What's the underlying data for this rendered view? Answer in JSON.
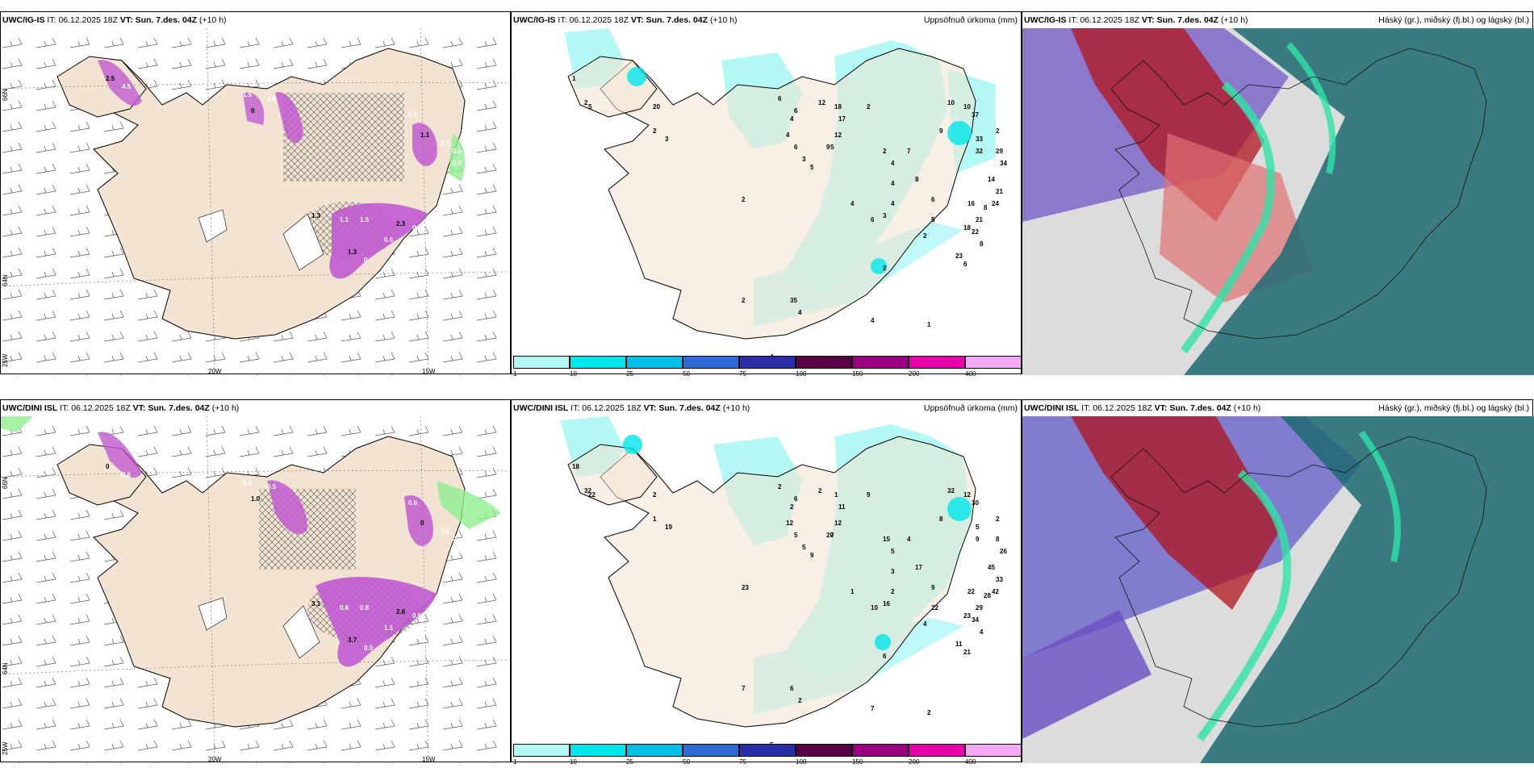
{
  "rows": [
    {
      "model": "UWC/IG-IS",
      "it_prefix": "IT:",
      "it_value": "06.12.2025 18Z",
      "vt_prefix": "VT:",
      "vt_value": "Sun. 7.des. 04Z",
      "lead": "(+10 h)",
      "precip_labels": [
        "1",
        "2",
        "5",
        "20",
        "2",
        "3",
        "6",
        "12",
        "18",
        "17",
        "12",
        "9",
        "6",
        "4",
        "4",
        "6",
        "3",
        "5",
        "5",
        "2",
        "2",
        "4",
        "4",
        "6",
        "3",
        "4",
        "7",
        "8",
        "6",
        "9",
        "10",
        "10",
        "37",
        "33",
        "32",
        "29",
        "34",
        "14",
        "21",
        "24",
        "8",
        "21",
        "18",
        "16",
        "22",
        "8",
        "23",
        "6",
        "5",
        "2",
        "4",
        "1",
        "4",
        "2",
        "2",
        "35",
        "4",
        "4",
        "2",
        "2"
      ],
      "map_precip_labels": [
        "2.5",
        "4.5",
        "1.5",
        "0",
        "1.0",
        "0.9",
        "1.1",
        "2.9",
        "0.6",
        "1.3",
        "1.1",
        "1.5",
        "2.3",
        "0.5",
        "0.6",
        "1.3",
        "0",
        "0.5"
      ]
    },
    {
      "model": "UWC/DINI ISL",
      "it_prefix": "IT:",
      "it_value": "06.12.2025 18Z",
      "vt_prefix": "VT:",
      "vt_value": "Sun. 7.des. 04Z",
      "lead": "(+10 h)",
      "precip_labels": [
        "18",
        "32",
        "22",
        "2",
        "1",
        "19",
        "2",
        "2",
        "1",
        "11",
        "12",
        "20",
        "6",
        "2",
        "12",
        "5",
        "5",
        "9",
        "7",
        "9",
        "15",
        "5",
        "1",
        "10",
        "16",
        "3",
        "4",
        "17",
        "9",
        "8",
        "32",
        "12",
        "30",
        "5",
        "9",
        "8",
        "26",
        "45",
        "33",
        "42",
        "28",
        "29",
        "23",
        "22",
        "34",
        "4",
        "11",
        "21",
        "22",
        "4",
        "7",
        "2",
        "2",
        "7",
        "6",
        "6",
        "5",
        "2",
        "23",
        "2"
      ],
      "map_precip_labels": [
        "0",
        "0.6",
        "0.6",
        "1.0",
        "0.5",
        "0.6",
        "0",
        "2.6",
        "0",
        "3.1",
        "0.6",
        "0.8",
        "2.6",
        "0.5",
        "1.1",
        "3.7",
        "0.0",
        "1.5"
      ]
    }
  ],
  "middle_title": "Uppsöfnuð úrkoma (mm)",
  "right_title": "Háský (gr.), miðský (fj.bl.) og lágský (bl.)",
  "colorbar": {
    "ticks": [
      "1",
      "10",
      "25",
      "50",
      "75",
      "100",
      "150",
      "200",
      "400"
    ],
    "colors": [
      "#b4f8f6",
      "#00e6ea",
      "#00bfe6",
      "#2d6ad6",
      "#2a2ea6",
      "#5a0046",
      "#9a0080",
      "#e600a8",
      "#f4a8f4"
    ]
  },
  "axes": {
    "lon_labels": [
      "20W",
      "15W"
    ],
    "lat_labels": [
      "66N",
      "64N"
    ],
    "lat_corner": "25W"
  },
  "palette": {
    "land": "#f2e3d2",
    "sea": "#ffffff",
    "precip_light": "#b4f8f6",
    "precip_mid": "#00e6ea",
    "precip_mag": "#c15ad0",
    "precip_green": "#90ee90",
    "cloud_high": "#d9d9d9",
    "cloud_mid": "#1d8a6a",
    "cloud_low": "#4c46c8",
    "cloud_red": "#b0141e"
  }
}
